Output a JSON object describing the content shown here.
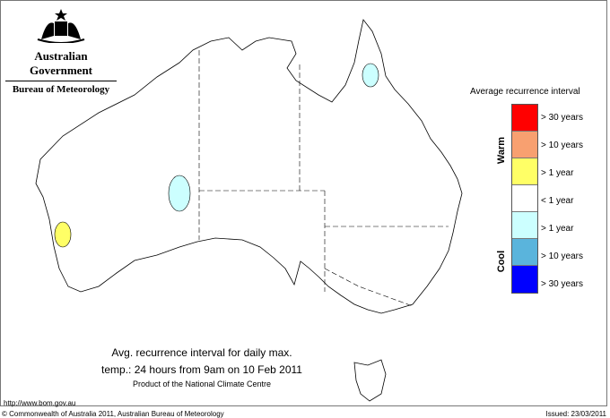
{
  "header": {
    "logo_line1": "Australian Government",
    "logo_line2": "Bureau of Meteorology"
  },
  "legend": {
    "title": "Average recurrence interval",
    "warm_label": "Warm",
    "cool_label": "Cool",
    "items": [
      {
        "label": "> 30 years",
        "color": "#ff0000"
      },
      {
        "label": "> 10 years",
        "color": "#f8a070"
      },
      {
        "label": "> 1 year",
        "color": "#ffff66"
      },
      {
        "label": "< 1 year",
        "color": "#ffffff"
      },
      {
        "label": "> 1 year",
        "color": "#ccffff"
      },
      {
        "label": "> 10 years",
        "color": "#5ab4dc"
      },
      {
        "label": "> 30 years",
        "color": "#0000ff"
      }
    ]
  },
  "map": {
    "anomaly_regions": [
      {
        "area": "Cape York / north Queensland",
        "category": "> 1 year (cool)",
        "color": "#ccffff"
      },
      {
        "area": "central Western Australia",
        "category": "> 1 year (cool)",
        "color": "#ccffff"
      },
      {
        "area": "south-west Western Australia",
        "category": "> 1 year (warm)",
        "color": "#ffff66"
      }
    ]
  },
  "caption": {
    "line1": "Avg. recurrence interval for daily max.",
    "line2": "temp.: 24 hours from 9am on 10 Feb 2011",
    "line3": "Product of the National Climate Centre"
  },
  "footer": {
    "url": "http://www.bom.gov.au",
    "copyright": "© Commonwealth of Australia 2011, Australian Bureau of Meteorology",
    "issued": "Issued: 23/03/2011"
  }
}
